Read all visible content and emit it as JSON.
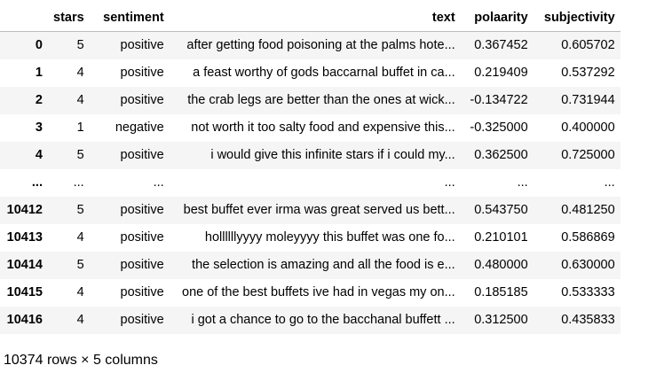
{
  "table": {
    "columns": [
      "",
      "stars",
      "sentiment",
      "text",
      "polaarity",
      "subjectivity"
    ],
    "rows": [
      [
        "0",
        "5",
        "positive",
        "after getting food poisoning at the palms hote...",
        "0.367452",
        "0.605702"
      ],
      [
        "1",
        "4",
        "positive",
        "a feast worthy of gods baccarnal buffet in ca...",
        "0.219409",
        "0.537292"
      ],
      [
        "2",
        "4",
        "positive",
        "the crab legs are better than the ones at wick...",
        "-0.134722",
        "0.731944"
      ],
      [
        "3",
        "1",
        "negative",
        "not worth it too salty food and expensive this...",
        "-0.325000",
        "0.400000"
      ],
      [
        "4",
        "5",
        "positive",
        "i would give this infinite stars if i could my...",
        "0.362500",
        "0.725000"
      ],
      [
        "...",
        "...",
        "...",
        "...",
        "...",
        "..."
      ],
      [
        "10412",
        "5",
        "positive",
        "best buffet ever irma was great served us bett...",
        "0.543750",
        "0.481250"
      ],
      [
        "10413",
        "4",
        "positive",
        "hollllllyyyy moleyyyy this buffet was one fo...",
        "0.210101",
        "0.586869"
      ],
      [
        "10414",
        "5",
        "positive",
        "the selection is amazing and all the food is e...",
        "0.480000",
        "0.630000"
      ],
      [
        "10415",
        "4",
        "positive",
        "one of the best buffets ive had in vegas my on...",
        "0.185185",
        "0.533333"
      ],
      [
        "10416",
        "4",
        "positive",
        "i got a chance to go to the bacchanal buffett ...",
        "0.312500",
        "0.435833"
      ]
    ]
  },
  "footer": "10374 rows × 5 columns"
}
